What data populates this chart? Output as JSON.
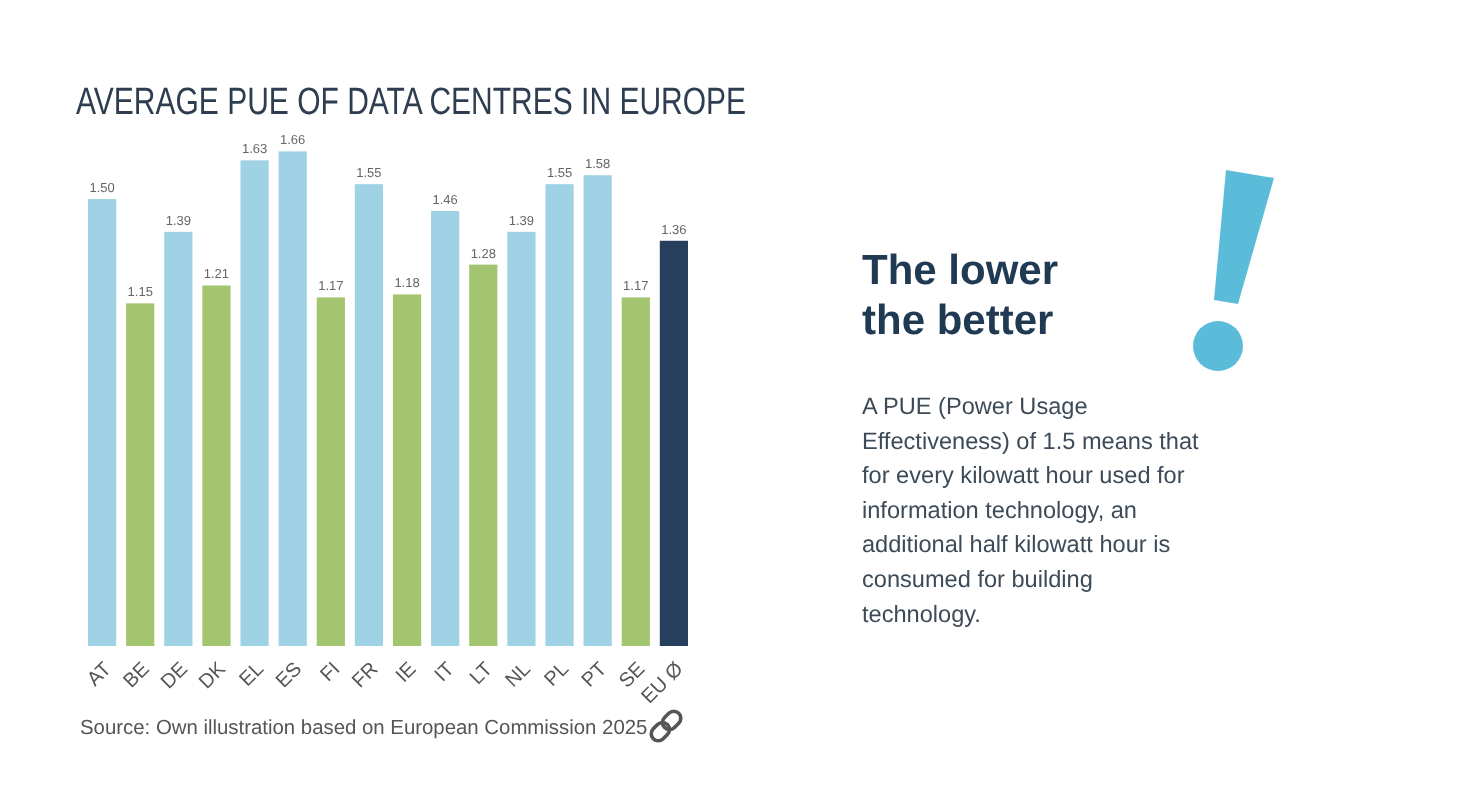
{
  "chart_data": {
    "type": "bar",
    "title": "AVERAGE PUE OF DATA CENTRES IN EUROPE",
    "categories": [
      "AT",
      "BE",
      "DE",
      "DK",
      "EL",
      "ES",
      "FI",
      "FR",
      "IE",
      "IT",
      "LT",
      "NL",
      "PL",
      "PT",
      "SE",
      "EU Ø"
    ],
    "values": [
      1.5,
      1.15,
      1.39,
      1.21,
      1.63,
      1.66,
      1.17,
      1.55,
      1.18,
      1.46,
      1.28,
      1.39,
      1.55,
      1.58,
      1.17,
      1.36
    ],
    "value_labels": [
      "1.50",
      "1.15",
      "1.39",
      "1.21",
      "1.63",
      "1.66",
      "1.17",
      "1.55",
      "1.18",
      "1.46",
      "1.28",
      "1.39",
      "1.55",
      "1.58",
      "1.17",
      "1.36"
    ],
    "colors": [
      "#9ed2e4",
      "#a3c570",
      "#9ed2e4",
      "#a3c570",
      "#9ed2e4",
      "#9ed2e4",
      "#a3c570",
      "#9ed2e4",
      "#a3c570",
      "#9ed2e4",
      "#a3c570",
      "#9ed2e4",
      "#9ed2e4",
      "#9ed2e4",
      "#a3c570",
      "#263f5c"
    ],
    "tick_labels": "x",
    "annotations": [
      "The lower the better",
      "A PUE (Power Usage Effectiveness) of 1.5 means that for every kilowatt hour used for information technology, an additional half kilowatt hour is consumed for building technology.",
      "Source: Own illustration based on European Commission 2025"
    ]
  }
}
